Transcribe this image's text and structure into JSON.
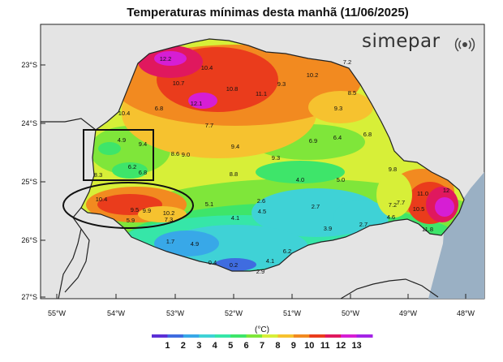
{
  "title": "Temperaturas mínimas desta manhã (11/06/2025)",
  "brand": "simepar",
  "brand_icon": "radio-signal-icon",
  "lat_labels": [
    "23°S",
    "24°S",
    "25°S",
    "26°S",
    "27°S"
  ],
  "lon_labels": [
    "55°W",
    "54°W",
    "53°W",
    "52°W",
    "51°W",
    "50°W",
    "49°W",
    "48°W"
  ],
  "colorbar": {
    "unit": "(°C)",
    "ticks": [
      "1",
      "2",
      "3",
      "4",
      "5",
      "6",
      "7",
      "8",
      "9",
      "10",
      "11",
      "12",
      "13"
    ],
    "colors": [
      "#5b2fd6",
      "#3f6ce0",
      "#38a8e8",
      "#3fd2d6",
      "#36e6a8",
      "#3ee56a",
      "#7fe63a",
      "#d7ef38",
      "#f6c22f",
      "#f28a20",
      "#ea3c1c",
      "#e0185e",
      "#d61ed4",
      "#a424e6"
    ]
  },
  "values": [
    {
      "text": "12.2"
    },
    {
      "text": "10.4"
    },
    {
      "text": "10.7"
    },
    {
      "text": "10.8"
    },
    {
      "text": "11.1"
    },
    {
      "text": "9.3"
    },
    {
      "text": "10.2"
    },
    {
      "text": "7.2"
    },
    {
      "text": "8.5"
    },
    {
      "text": "12.1"
    },
    {
      "text": "6.8"
    },
    {
      "text": "10.4"
    },
    {
      "text": "9.3"
    },
    {
      "text": "7.7"
    },
    {
      "text": "4.9"
    },
    {
      "text": "9.4"
    },
    {
      "text": "8.6"
    },
    {
      "text": "9.0"
    },
    {
      "text": "9.4"
    },
    {
      "text": "6.9"
    },
    {
      "text": "6.4"
    },
    {
      "text": "6.8"
    },
    {
      "text": "9.3"
    },
    {
      "text": "6.2"
    },
    {
      "text": "6.8"
    },
    {
      "text": "8.3"
    },
    {
      "text": "8.8"
    },
    {
      "text": "4.0"
    },
    {
      "text": "5.0"
    },
    {
      "text": "9.8"
    },
    {
      "text": "11.0"
    },
    {
      "text": "12"
    },
    {
      "text": "10.4"
    },
    {
      "text": "5.1"
    },
    {
      "text": "2.6"
    },
    {
      "text": "7.2"
    },
    {
      "text": "7.7"
    },
    {
      "text": "10.5"
    },
    {
      "text": "9.5"
    },
    {
      "text": "9.9"
    },
    {
      "text": "10.2"
    },
    {
      "text": "4.5"
    },
    {
      "text": "2.7"
    },
    {
      "text": "5.9"
    },
    {
      "text": "7.3"
    },
    {
      "text": "4.1"
    },
    {
      "text": "2.7"
    },
    {
      "text": "4.6"
    },
    {
      "text": "3.9"
    },
    {
      "text": "11.8"
    },
    {
      "text": "1.7"
    },
    {
      "text": "4.9"
    },
    {
      "text": "6.2"
    },
    {
      "text": "4.1"
    },
    {
      "text": "0.4"
    },
    {
      "text": "0.2"
    },
    {
      "text": "2.9"
    }
  ],
  "annotations": [
    "highlight-rectangle",
    "highlight-ellipse"
  ]
}
